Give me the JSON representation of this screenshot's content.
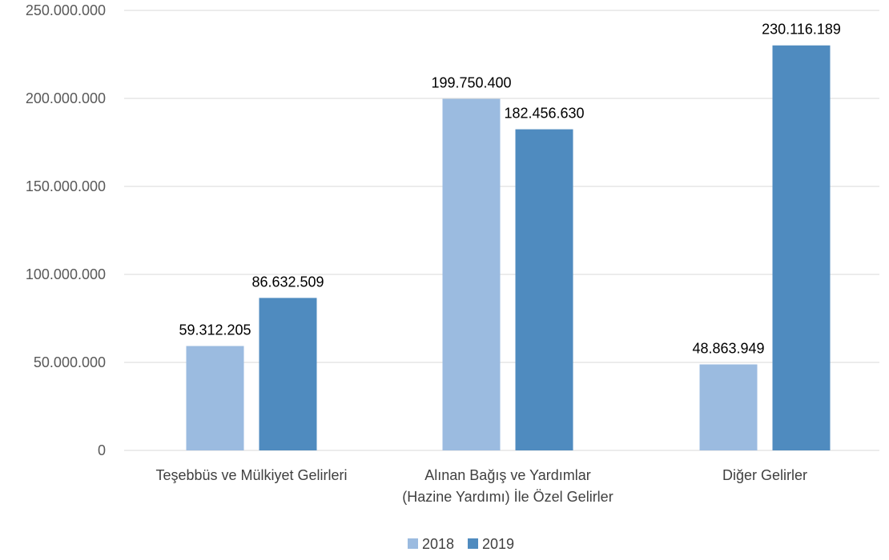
{
  "chart_data": {
    "type": "bar",
    "categories": [
      [
        "Teşebbüs ve Mülkiyet Gelirleri"
      ],
      [
        "Alınan Bağış ve Yardımlar",
        "(Hazine Yardımı) İle Özel Gelirler"
      ],
      [
        "Diğer Gelirler"
      ]
    ],
    "series": [
      {
        "name": "2018",
        "color": "#9bbbe0",
        "values": [
          59312205,
          199750400,
          48863949
        ],
        "labels": [
          "59.312.205",
          "199.750.400",
          "48.863.949"
        ]
      },
      {
        "name": "2019",
        "color": "#4f8bbf",
        "values": [
          86632509,
          182456630,
          230116189
        ],
        "labels": [
          "86.632.509",
          "182.456.630",
          "230.116.189"
        ]
      }
    ],
    "y_ticks": [
      {
        "value": 0,
        "label": "0"
      },
      {
        "value": 50000000,
        "label": "50.000.000"
      },
      {
        "value": 100000000,
        "label": "100.000.000"
      },
      {
        "value": 150000000,
        "label": "150.000.000"
      },
      {
        "value": 200000000,
        "label": "200.000.000"
      },
      {
        "value": 250000000,
        "label": "250.000.000"
      }
    ],
    "ylim": [
      0,
      250000000
    ],
    "grid": true,
    "legend_position": "bottom-center"
  }
}
